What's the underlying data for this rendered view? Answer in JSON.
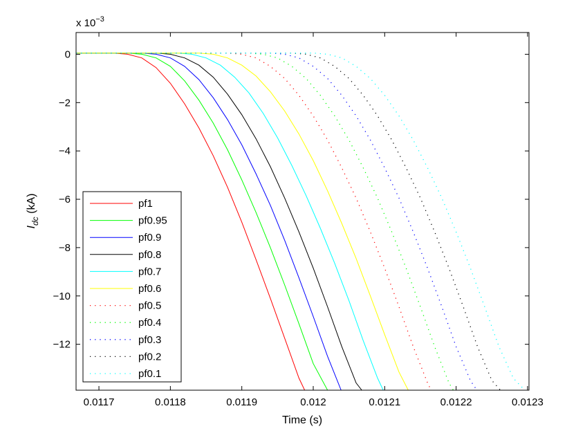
{
  "chart_data": {
    "type": "line",
    "xlabel": "Time (s)",
    "ylabel_main": "I",
    "ylabel_sub": "dc",
    "ylabel_unit": " (kA)",
    "y_multiplier": {
      "base": "x 10",
      "exponent": "−3"
    },
    "xlim": [
      0.011668,
      0.012302
    ],
    "ylim": [
      -13.9,
      0.9
    ],
    "x_ticks": [
      0.0117,
      0.0118,
      0.0119,
      0.012,
      0.0121,
      0.0122,
      0.0123
    ],
    "x_tick_labels": [
      "0.0117",
      "0.0118",
      "0.0119",
      "0.012",
      "0.0121",
      "0.0122",
      "0.0123"
    ],
    "y_ticks": [
      0,
      -2,
      -4,
      -6,
      -8,
      -10,
      -12
    ],
    "y_tick_labels": [
      "0",
      "−2",
      "−4",
      "−6",
      "−8",
      "−10",
      "−12"
    ],
    "grid": false,
    "legend_position": "bottom-left",
    "series": [
      {
        "name": "pf1",
        "color": "#ff0000",
        "style": "solid",
        "x": [
          0.011668,
          0.01172,
          0.01174,
          0.01176,
          0.01178,
          0.0118,
          0.01182,
          0.01184,
          0.01186,
          0.01188,
          0.0119,
          0.01192,
          0.01194,
          0.01196,
          0.01198,
          0.011988
        ],
        "y": [
          0.05,
          0.05,
          0.0,
          -0.15,
          -0.55,
          -1.2,
          -2.05,
          -3.05,
          -4.2,
          -5.5,
          -6.95,
          -8.5,
          -10.1,
          -11.75,
          -13.4,
          -13.9
        ]
      },
      {
        "name": "pf0.95",
        "color": "#00ff00",
        "style": "solid",
        "x": [
          0.011668,
          0.01174,
          0.01176,
          0.01178,
          0.0118,
          0.01182,
          0.01184,
          0.01186,
          0.01188,
          0.0119,
          0.01192,
          0.01194,
          0.01196,
          0.01198,
          0.012,
          0.01202
        ],
        "y": [
          0.05,
          0.05,
          0.0,
          -0.15,
          -0.5,
          -1.1,
          -1.9,
          -2.85,
          -3.95,
          -5.2,
          -6.55,
          -8.0,
          -9.55,
          -11.15,
          -12.8,
          -13.9
        ]
      },
      {
        "name": "pf0.9",
        "color": "#0000ff",
        "style": "solid",
        "x": [
          0.011668,
          0.01176,
          0.01178,
          0.0118,
          0.01182,
          0.01184,
          0.01186,
          0.01188,
          0.0119,
          0.01192,
          0.01194,
          0.01196,
          0.01198,
          0.012,
          0.01202,
          0.012039
        ],
        "y": [
          0.05,
          0.05,
          0.0,
          -0.15,
          -0.5,
          -1.05,
          -1.8,
          -2.7,
          -3.75,
          -4.95,
          -6.25,
          -7.7,
          -9.25,
          -10.85,
          -12.5,
          -13.9
        ]
      },
      {
        "name": "pf0.8",
        "color": "#000000",
        "style": "solid",
        "x": [
          0.011668,
          0.01178,
          0.0118,
          0.01182,
          0.01184,
          0.01186,
          0.01188,
          0.0119,
          0.01192,
          0.01194,
          0.01196,
          0.01198,
          0.012,
          0.01202,
          0.01204,
          0.01206,
          0.012068
        ],
        "y": [
          0.05,
          0.05,
          0.0,
          -0.15,
          -0.45,
          -0.95,
          -1.65,
          -2.5,
          -3.5,
          -4.65,
          -5.95,
          -7.35,
          -8.85,
          -10.45,
          -12.1,
          -13.6,
          -13.9
        ]
      },
      {
        "name": "pf0.7",
        "color": "#00ffff",
        "style": "solid",
        "x": [
          0.011668,
          0.01181,
          0.01183,
          0.01185,
          0.01187,
          0.01189,
          0.01191,
          0.01193,
          0.01195,
          0.01197,
          0.01199,
          0.01201,
          0.01203,
          0.01205,
          0.01207,
          0.01209,
          0.012098
        ],
        "y": [
          0.05,
          0.05,
          0.0,
          -0.15,
          -0.45,
          -0.95,
          -1.6,
          -2.45,
          -3.45,
          -4.6,
          -5.85,
          -7.2,
          -8.65,
          -10.2,
          -11.85,
          -13.4,
          -13.9
        ]
      },
      {
        "name": "pf0.6",
        "color": "#ffff00",
        "style": "solid",
        "x": [
          0.011668,
          0.01184,
          0.01186,
          0.01188,
          0.0119,
          0.01192,
          0.01194,
          0.01196,
          0.01198,
          0.012,
          0.01202,
          0.01204,
          0.01206,
          0.01208,
          0.0121,
          0.01212,
          0.012133
        ],
        "y": [
          0.05,
          0.05,
          0.0,
          -0.15,
          -0.45,
          -0.9,
          -1.55,
          -2.35,
          -3.3,
          -4.4,
          -5.65,
          -7.0,
          -8.45,
          -10.0,
          -11.6,
          -13.15,
          -13.9
        ]
      },
      {
        "name": "pf0.5",
        "color": "#ff0000",
        "style": "dotted",
        "x": [
          0.011668,
          0.01188,
          0.0119,
          0.01192,
          0.01194,
          0.01196,
          0.01198,
          0.012,
          0.01202,
          0.01204,
          0.01206,
          0.01208,
          0.0121,
          0.01212,
          0.01214,
          0.01216,
          0.012165
        ],
        "y": [
          0.05,
          0.05,
          0.0,
          -0.15,
          -0.5,
          -1.0,
          -1.7,
          -2.55,
          -3.55,
          -4.7,
          -5.95,
          -7.35,
          -8.85,
          -10.45,
          -12.1,
          -13.6,
          -13.9
        ]
      },
      {
        "name": "pf0.4",
        "color": "#00ff00",
        "style": "dotted",
        "x": [
          0.011668,
          0.01191,
          0.01193,
          0.01195,
          0.01197,
          0.01199,
          0.01201,
          0.01203,
          0.01205,
          0.01207,
          0.01209,
          0.01211,
          0.01213,
          0.01215,
          0.01217,
          0.01219,
          0.012196
        ],
        "y": [
          0.05,
          0.05,
          0.0,
          -0.15,
          -0.5,
          -1.0,
          -1.7,
          -2.55,
          -3.55,
          -4.7,
          -5.95,
          -7.35,
          -8.85,
          -10.45,
          -12.1,
          -13.6,
          -13.9
        ]
      },
      {
        "name": "pf0.3",
        "color": "#0000ff",
        "style": "dotted",
        "x": [
          0.011668,
          0.01194,
          0.01196,
          0.01198,
          0.012,
          0.01202,
          0.01204,
          0.01206,
          0.01208,
          0.0121,
          0.01212,
          0.01214,
          0.01216,
          0.01218,
          0.0122,
          0.01222,
          0.012229
        ],
        "y": [
          0.05,
          0.05,
          0.0,
          -0.15,
          -0.5,
          -1.0,
          -1.7,
          -2.55,
          -3.55,
          -4.7,
          -5.95,
          -7.35,
          -8.85,
          -10.45,
          -12.1,
          -13.5,
          -13.9
        ]
      },
      {
        "name": "pf0.2",
        "color": "#000000",
        "style": "dotted",
        "x": [
          0.011668,
          0.01197,
          0.01199,
          0.01201,
          0.01203,
          0.01205,
          0.01207,
          0.01209,
          0.01211,
          0.01213,
          0.01215,
          0.01217,
          0.01219,
          0.01221,
          0.01223,
          0.01225,
          0.012262
        ],
        "y": [
          0.05,
          0.05,
          0.0,
          -0.15,
          -0.5,
          -1.0,
          -1.7,
          -2.55,
          -3.55,
          -4.7,
          -5.95,
          -7.35,
          -8.85,
          -10.45,
          -12.1,
          -13.5,
          -13.9
        ]
      },
      {
        "name": "pf0.1",
        "color": "#00ffff",
        "style": "dotted",
        "x": [
          0.011668,
          0.012,
          0.01202,
          0.01204,
          0.01206,
          0.01208,
          0.0121,
          0.01212,
          0.01214,
          0.01216,
          0.01218,
          0.0122,
          0.01222,
          0.01224,
          0.01226,
          0.01228,
          0.012296
        ],
        "y": [
          0.05,
          0.05,
          0.0,
          -0.15,
          -0.5,
          -1.0,
          -1.7,
          -2.55,
          -3.55,
          -4.7,
          -5.95,
          -7.35,
          -8.85,
          -10.45,
          -12.1,
          -13.4,
          -13.9
        ]
      }
    ]
  }
}
